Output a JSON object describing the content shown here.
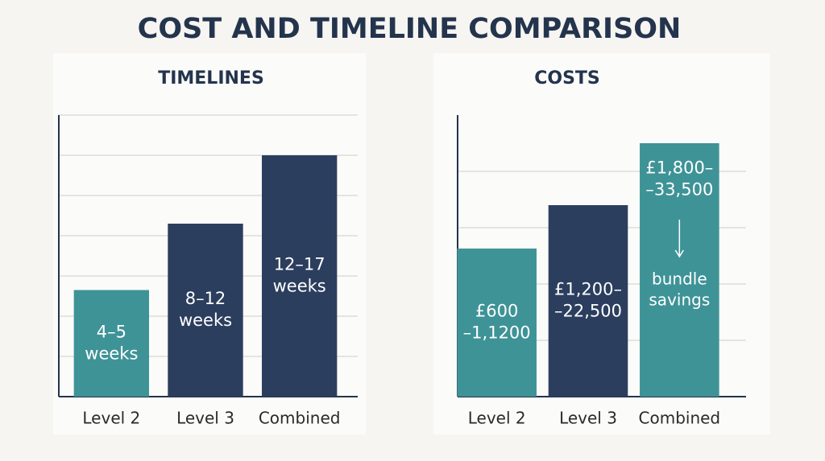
{
  "title": "COST AND TIMELINE COMPARISON",
  "chart_data": [
    {
      "type": "bar",
      "title": "TIMELINES",
      "categories": [
        "Level 2",
        "Level 3",
        "Combined"
      ],
      "values": [
        2.65,
        4.3,
        6.0
      ],
      "value_labels": [
        [
          "4–5",
          "weeks"
        ],
        [
          "8–12",
          "weeks"
        ],
        [
          "12–17",
          "weeks"
        ]
      ],
      "colors": [
        "#3e9397",
        "#2c3e5e",
        "#2c3e5e"
      ],
      "ylim": [
        0,
        7
      ],
      "yticks": [
        1,
        2,
        3,
        4,
        5,
        6,
        7
      ],
      "grid": true
    },
    {
      "type": "bar",
      "title": "COSTS",
      "categories": [
        "Level 2",
        "Level 3",
        "Combined"
      ],
      "values": [
        2.63,
        3.4,
        4.5
      ],
      "value_labels": [
        [
          "£600",
          "–1,1200"
        ],
        [
          "£1,200–",
          "–22,500"
        ],
        [
          "£1,800–",
          "–33,500"
        ]
      ],
      "annotations": [
        null,
        null,
        [
          "bundle",
          "savings"
        ]
      ],
      "colors": [
        "#3e9397",
        "#2c3e5e",
        "#3e9397"
      ],
      "ylim": [
        0,
        5
      ],
      "yticks": [
        1,
        2,
        3,
        4
      ],
      "grid": true
    }
  ]
}
